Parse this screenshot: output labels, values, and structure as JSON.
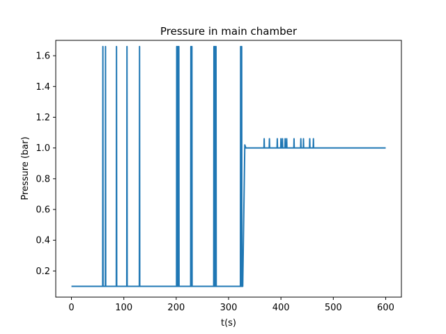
{
  "chart_data": {
    "type": "line",
    "title": "Pressure in main chamber",
    "xlabel": "t(s)",
    "ylabel": "Pressure (bar)",
    "xlim": [
      -30,
      630
    ],
    "ylim": [
      0.03,
      1.7
    ],
    "x_ticks": [
      0,
      100,
      200,
      300,
      400,
      500,
      600
    ],
    "x_tick_labels": [
      "0",
      "100",
      "200",
      "300",
      "400",
      "500",
      "600"
    ],
    "y_ticks": [
      0.2,
      0.4,
      0.6,
      0.8,
      1.0,
      1.2,
      1.4,
      1.6
    ],
    "y_tick_labels": [
      "0.2",
      "0.4",
      "0.6",
      "0.8",
      "1.0",
      "1.2",
      "1.4",
      "1.6"
    ],
    "grid": false,
    "legend": "none",
    "series": [
      {
        "color": "#1f77b4",
        "baseline_phase": {
          "x_start": 0,
          "x_end": 327,
          "value": 0.1
        },
        "spike_peak": 1.66,
        "spike_times": [
          60,
          65,
          86,
          106,
          130,
          201,
          203,
          205,
          228,
          230,
          272,
          274,
          276,
          323,
          325
        ],
        "transition": {
          "x_start": 327,
          "x_end": 333,
          "from": 0.1,
          "overshoot": 1.02,
          "to": 1.0
        },
        "plateau_phase": {
          "x_start": 333,
          "x_end": 600,
          "value": 1.0
        },
        "small_spike_peak": 1.06,
        "small_spike_times": [
          368,
          378,
          393,
          400,
          403,
          408,
          411,
          425,
          438,
          443,
          455,
          462
        ]
      }
    ]
  }
}
